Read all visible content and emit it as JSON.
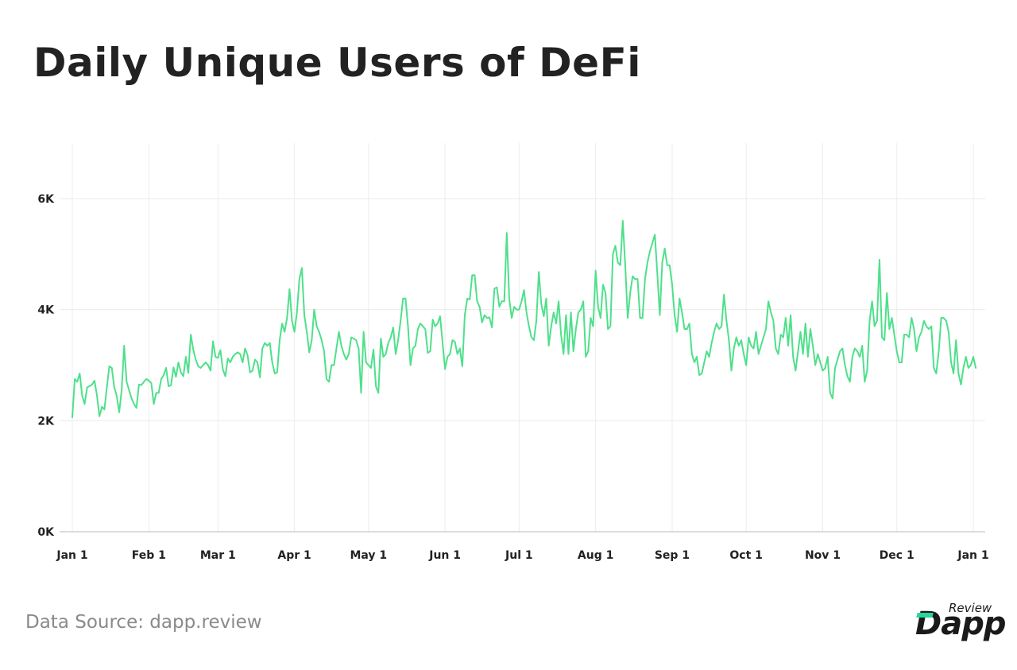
{
  "title": "Daily Unique Users of DeFi",
  "source": "Data Source: dapp.review",
  "logo": {
    "word": "Dapp",
    "superscript": "Review"
  },
  "colors": {
    "line": "#4ee08a",
    "grid": "#ececec",
    "axis": "#cfcfcf",
    "logo_accent": "#2bd497"
  },
  "chart_data": {
    "type": "line",
    "title": "Daily Unique Users of DeFi",
    "xlabel": "",
    "ylabel": "",
    "ylim": [
      0,
      7000
    ],
    "y_ticks": [
      0,
      2000,
      4000,
      6000
    ],
    "y_tick_labels": [
      "0K",
      "2K",
      "4K",
      "6K"
    ],
    "x_tick_days": [
      0,
      31,
      59,
      90,
      120,
      151,
      181,
      212,
      243,
      273,
      304,
      334,
      365
    ],
    "x_tick_labels": [
      "Jan 1",
      "Feb 1",
      "Mar 1",
      "Apr 1",
      "May 1",
      "Jun 1",
      "Jul 1",
      "Aug 1",
      "Sep 1",
      "Oct 1",
      "Nov 1",
      "Dec 1",
      "Jan 1"
    ],
    "grid": true,
    "legend": "none",
    "series": [
      {
        "name": "",
        "x_start": "Jan 1",
        "step": "1 day",
        "values": [
          2060,
          2750,
          2700,
          2850,
          2450,
          2300,
          2600,
          2620,
          2650,
          2720,
          2450,
          2080,
          2250,
          2200,
          2600,
          2980,
          2950,
          2600,
          2450,
          2150,
          2550,
          3350,
          2700,
          2550,
          2400,
          2300,
          2230,
          2650,
          2640,
          2700,
          2750,
          2720,
          2680,
          2300,
          2500,
          2500,
          2750,
          2820,
          2950,
          2620,
          2640,
          2960,
          2790,
          3050,
          2870,
          2800,
          3150,
          2860,
          3550,
          3280,
          3100,
          2980,
          2950,
          3000,
          3050,
          3000,
          2900,
          3430,
          3150,
          3130,
          3270,
          2920,
          2800,
          3120,
          3050,
          3150,
          3200,
          3230,
          3200,
          3050,
          3300,
          3180,
          2870,
          2900,
          3100,
          3050,
          2780,
          3300,
          3400,
          3350,
          3400,
          3050,
          2850,
          2870,
          3450,
          3750,
          3600,
          3850,
          4370,
          3800,
          3600,
          3950,
          4550,
          4750,
          3900,
          3600,
          3230,
          3450,
          4000,
          3700,
          3600,
          3450,
          3250,
          2750,
          2700,
          3000,
          3000,
          3300,
          3600,
          3350,
          3200,
          3100,
          3200,
          3500,
          3480,
          3450,
          3300,
          2500,
          3600,
          3050,
          3000,
          2950,
          3280,
          2620,
          2500,
          3480,
          3150,
          3200,
          3400,
          3500,
          3680,
          3200,
          3450,
          3800,
          4200,
          4200,
          3700,
          3000,
          3300,
          3350,
          3650,
          3750,
          3700,
          3650,
          3220,
          3250,
          3820,
          3700,
          3750,
          3880,
          3400,
          2930,
          3150,
          3200,
          3450,
          3420,
          3200,
          3300,
          2980,
          3900,
          4200,
          4180,
          4620,
          4620,
          4150,
          4050,
          3770,
          3900,
          3850,
          3860,
          3680,
          4380,
          4400,
          4050,
          4150,
          4150,
          5380,
          4200,
          3850,
          4050,
          4000,
          4000,
          4150,
          4350,
          3950,
          3700,
          3500,
          3450,
          3800,
          4680,
          4100,
          3880,
          4200,
          3350,
          3700,
          3950,
          3750,
          4150,
          3550,
          3200,
          3900,
          3200,
          3950,
          3250,
          3650,
          3950,
          4000,
          4150,
          3150,
          3250,
          3850,
          3700,
          4700,
          4050,
          3850,
          4450,
          4300,
          3650,
          3700,
          5000,
          5150,
          4850,
          4800,
          5600,
          4800,
          3850,
          4300,
          4600,
          4550,
          4550,
          3850,
          3850,
          4550,
          4850,
          5050,
          5200,
          5350,
          4650,
          3900,
          4850,
          5100,
          4800,
          4800,
          4450,
          3900,
          3600,
          4200,
          3950,
          3650,
          3650,
          3750,
          3200,
          3050,
          3150,
          2820,
          2850,
          3050,
          3250,
          3150,
          3400,
          3600,
          3750,
          3650,
          3700,
          4270,
          3800,
          3450,
          2900,
          3300,
          3500,
          3350,
          3450,
          3200,
          3000,
          3500,
          3350,
          3300,
          3600,
          3200,
          3350,
          3500,
          3650,
          4150,
          3950,
          3800,
          3300,
          3200,
          3550,
          3500,
          3850,
          3350,
          3900,
          3150,
          2900,
          3250,
          3600,
          3200,
          3750,
          3150,
          3650,
          3350,
          3000,
          3200,
          3050,
          2900,
          2950,
          3150,
          2500,
          2400,
          2950,
          3100,
          3250,
          3300,
          3000,
          2800,
          2700,
          3150,
          3300,
          3250,
          3150,
          3350,
          2700,
          2900,
          3800,
          4150,
          3700,
          3800,
          4900,
          3500,
          3450,
          4300,
          3650,
          3850,
          3550,
          3250,
          3050,
          3050,
          3550,
          3550,
          3500,
          3850,
          3650,
          3250,
          3500,
          3600,
          3800,
          3700,
          3650,
          3700,
          2950,
          2850,
          3250,
          3850,
          3850,
          3800,
          3600,
          3050,
          2850,
          3450,
          2850,
          2650,
          2950,
          3150,
          2950,
          3000,
          3150,
          2950
        ]
      }
    ]
  }
}
